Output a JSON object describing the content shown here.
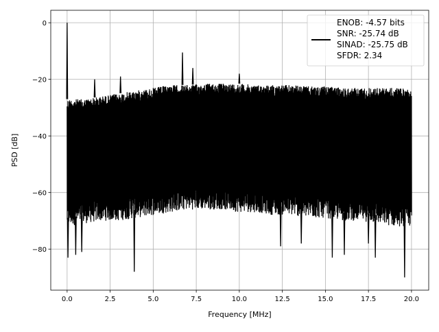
{
  "chart_data": {
    "type": "line",
    "title": "",
    "xlabel": "Frequency [MHz]",
    "ylabel": "PSD [dB]",
    "xlim": [
      -0.95,
      21.0
    ],
    "ylim": [
      -94.5,
      4.4
    ],
    "xticks": [
      0.0,
      2.5,
      5.0,
      7.5,
      10.0,
      12.5,
      15.0,
      17.5,
      20.0
    ],
    "xtick_labels": [
      "0.0",
      "2.5",
      "5.0",
      "7.5",
      "10.0",
      "12.5",
      "15.0",
      "17.5",
      "20.0"
    ],
    "yticks": [
      0,
      -20,
      -40,
      -60,
      -80
    ],
    "ytick_labels": [
      "0",
      "−20",
      "−40",
      "−60",
      "−80"
    ],
    "grid": true,
    "legend_placement": "upper-right",
    "legend_entries": [
      "ENOB: -4.57 bits",
      "SNR: -25.74 dB",
      "SINAD: -25.75 dB",
      "SFDR: 2.34"
    ],
    "line_color": "#000000",
    "envelope_x": [
      0,
      1,
      2,
      3,
      4,
      5,
      6,
      7,
      8,
      9,
      10,
      11,
      12,
      13,
      14,
      15,
      16,
      17,
      18,
      19,
      20
    ],
    "upper_envelope": [
      -27,
      -27,
      -26,
      -25,
      -24,
      -23,
      -22,
      -22,
      -21.5,
      -21.5,
      -21.5,
      -22,
      -22,
      -22,
      -22.5,
      -22.5,
      -23,
      -23,
      -23,
      -23,
      -23.5
    ],
    "lower_envelope": [
      -69,
      -68,
      -67,
      -67,
      -66,
      -65,
      -64,
      -63,
      -63,
      -63,
      -64,
      -64,
      -65,
      -65,
      -66,
      -66,
      -67,
      -67,
      -68,
      -69,
      -69
    ],
    "peaks": [
      [
        0.0,
        0.0
      ],
      [
        1.6,
        -20
      ],
      [
        3.1,
        -19
      ],
      [
        6.7,
        -10.5
      ],
      [
        7.3,
        -16
      ],
      [
        10.0,
        -18
      ]
    ],
    "dips": [
      [
        0.05,
        -83
      ],
      [
        0.5,
        -82
      ],
      [
        0.85,
        -81
      ],
      [
        3.9,
        -88
      ],
      [
        12.4,
        -79
      ],
      [
        13.6,
        -78
      ],
      [
        15.4,
        -83
      ],
      [
        16.1,
        -82
      ],
      [
        17.5,
        -78
      ],
      [
        17.9,
        -83
      ],
      [
        19.6,
        -90
      ]
    ]
  }
}
